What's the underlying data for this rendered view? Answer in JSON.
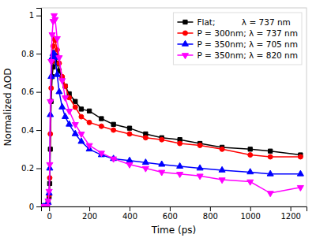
{
  "chart_data": {
    "type": "line",
    "xlabel": "Time (ps)",
    "ylabel": "Normalized ΔOD",
    "xlim": [
      -40,
      1280
    ],
    "ylim": [
      0,
      1.04
    ],
    "xticks": [
      0,
      200,
      400,
      600,
      800,
      1000,
      1200
    ],
    "yticks": [
      0,
      0.2,
      0.4,
      0.6,
      0.8,
      1
    ],
    "legend": "upper right",
    "x": [
      -30,
      -20,
      -15,
      -10,
      -5,
      0,
      3,
      6,
      10,
      15,
      20,
      25,
      30,
      40,
      50,
      65,
      80,
      100,
      130,
      160,
      200,
      260,
      320,
      400,
      480,
      560,
      650,
      750,
      860,
      1000,
      1100,
      1250
    ],
    "series": [
      {
        "name": "Flat;          λ = 737 nm",
        "color": "black",
        "marker": "square",
        "values": [
          0.0,
          0.0,
          0.0,
          0.0,
          0.02,
          0.05,
          0.12,
          0.3,
          0.55,
          0.68,
          0.73,
          0.78,
          0.79,
          0.75,
          0.71,
          0.67,
          0.63,
          0.59,
          0.55,
          0.51,
          0.5,
          0.46,
          0.43,
          0.41,
          0.38,
          0.36,
          0.35,
          0.33,
          0.31,
          0.3,
          0.29,
          0.27
        ]
      },
      {
        "name": "P = 300nm; λ = 737 nm",
        "color": "red",
        "marker": "circle",
        "values": [
          0.0,
          0.0,
          0.0,
          0.0,
          0.02,
          0.06,
          0.15,
          0.38,
          0.62,
          0.76,
          0.84,
          0.88,
          0.87,
          0.82,
          0.75,
          0.68,
          0.63,
          0.57,
          0.52,
          0.47,
          0.44,
          0.42,
          0.4,
          0.38,
          0.36,
          0.35,
          0.33,
          0.32,
          0.3,
          0.27,
          0.26,
          0.26
        ]
      },
      {
        "name": "P = 350nm; λ = 705 nm",
        "color": "blue",
        "marker": "triangle-up",
        "values": [
          0.0,
          0.0,
          0.0,
          0.0,
          0.02,
          0.07,
          0.2,
          0.48,
          0.68,
          0.78,
          0.8,
          0.8,
          0.78,
          0.69,
          0.6,
          0.52,
          0.47,
          0.43,
          0.38,
          0.34,
          0.3,
          0.27,
          0.25,
          0.24,
          0.23,
          0.22,
          0.21,
          0.2,
          0.19,
          0.18,
          0.17,
          0.17
        ]
      },
      {
        "name": "P = 350nm; λ = 820 nm",
        "color": "#ff00ff",
        "marker": "triangle-down",
        "values": [
          0.0,
          0.0,
          0.0,
          0.0,
          0.03,
          0.08,
          0.22,
          0.55,
          0.76,
          0.9,
          0.97,
          1.0,
          0.98,
          0.88,
          0.78,
          0.66,
          0.57,
          0.5,
          0.43,
          0.38,
          0.32,
          0.28,
          0.25,
          0.22,
          0.2,
          0.18,
          0.17,
          0.16,
          0.14,
          0.13,
          0.07,
          0.1
        ]
      }
    ]
  }
}
